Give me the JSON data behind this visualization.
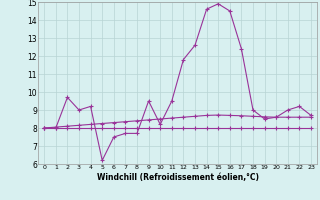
{
  "xlabel": "Windchill (Refroidissement éolien,°C)",
  "x": [
    0,
    1,
    2,
    3,
    4,
    5,
    6,
    7,
    8,
    9,
    10,
    11,
    12,
    13,
    14,
    15,
    16,
    17,
    18,
    19,
    20,
    21,
    22,
    23
  ],
  "y_main": [
    8.0,
    8.0,
    9.7,
    9.0,
    9.2,
    6.2,
    7.5,
    7.7,
    7.7,
    9.5,
    8.2,
    9.5,
    11.8,
    12.6,
    14.6,
    14.9,
    14.5,
    12.4,
    9.0,
    8.5,
    8.6,
    9.0,
    9.2,
    8.7
  ],
  "y_trend1": [
    8.0,
    8.05,
    8.1,
    8.15,
    8.2,
    8.25,
    8.3,
    8.35,
    8.4,
    8.45,
    8.5,
    8.55,
    8.6,
    8.65,
    8.7,
    8.72,
    8.7,
    8.68,
    8.65,
    8.62,
    8.6,
    8.6,
    8.6,
    8.6
  ],
  "y_trend2": [
    8.0,
    8.0,
    8.0,
    8.0,
    8.0,
    8.0,
    8.0,
    8.0,
    8.0,
    8.0,
    8.0,
    8.0,
    8.0,
    8.0,
    8.0,
    8.0,
    8.0,
    8.0,
    8.0,
    8.0,
    8.0,
    8.0,
    8.0,
    8.0
  ],
  "line_color": "#993399",
  "bg_color": "#d8f0f0",
  "grid_color": "#b8d4d4",
  "ylim": [
    6,
    15
  ],
  "yticks": [
    6,
    7,
    8,
    9,
    10,
    11,
    12,
    13,
    14,
    15
  ],
  "xticks": [
    0,
    1,
    2,
    3,
    4,
    5,
    6,
    7,
    8,
    9,
    10,
    11,
    12,
    13,
    14,
    15,
    16,
    17,
    18,
    19,
    20,
    21,
    22,
    23
  ],
  "marker": "+",
  "markersize": 3,
  "linewidth": 0.8
}
